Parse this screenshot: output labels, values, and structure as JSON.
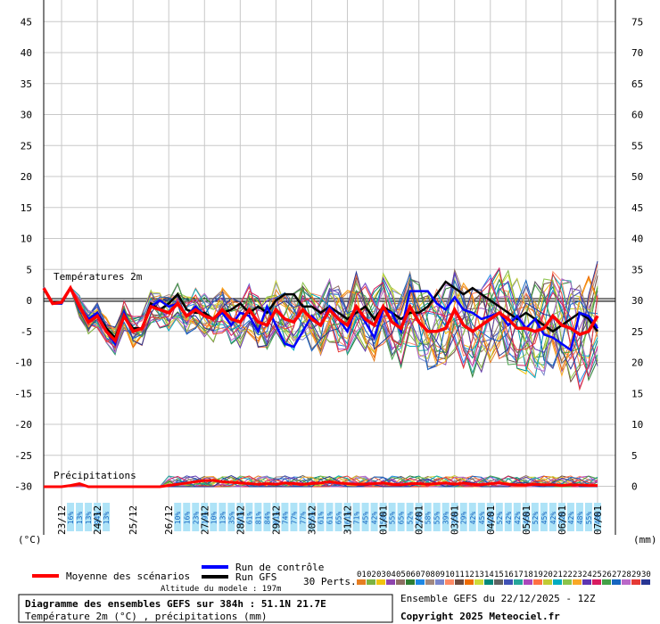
{
  "chart_data": {
    "type": "line",
    "title": "Diagramme des ensembles GEFS sur 384h : 51.1N 21.7E",
    "subtitle": "Température 2m (°C) , précipitations (mm)",
    "left_axis_unit": "(°C)",
    "right_axis_unit": "(mm)",
    "temp_ylim": [
      -30,
      45
    ],
    "temp_ticks": [
      45,
      40,
      35,
      30,
      25,
      20,
      15,
      10,
      5,
      0,
      -5,
      -10,
      -15,
      -20,
      -25,
      -30
    ],
    "right_ticks": [
      75,
      70,
      65,
      60,
      55,
      50,
      45,
      40,
      35,
      30,
      25,
      20,
      15,
      10,
      5,
      0
    ],
    "temp_section_label": "Températures 2m",
    "precip_section_label": "Précipitations",
    "date_labels": [
      "23/12",
      "24/12",
      "25/12",
      "26/12",
      "27/12",
      "28/12",
      "29/12",
      "30/12",
      "31/12",
      "01/01",
      "02/01",
      "03/01",
      "04/01",
      "05/01",
      "06/01",
      "07/01"
    ],
    "x_hours_max": 384,
    "x_step_hours": 6,
    "mean_temperature": [
      2,
      -0.5,
      -0.3,
      2,
      -1,
      -3.5,
      -2.5,
      -5,
      -6.5,
      -2.5,
      -5,
      -4.5,
      -1,
      -1.5,
      -2,
      -0.5,
      -2.5,
      -1.5,
      -2.5,
      -3,
      -1.5,
      -3,
      -3.5,
      -1.5,
      -3.5,
      -4,
      -1.5,
      -3,
      -3.5,
      -1.5,
      -3,
      -4,
      -1.5,
      -3,
      -4,
      -1,
      -3,
      -4,
      -1,
      -3.5,
      -4.5,
      -1,
      -3.5,
      -5,
      -5,
      -4.5,
      -1.5,
      -4,
      -5,
      -4,
      -3,
      -2,
      -3,
      -4.5,
      -4.5,
      -5,
      -4.5,
      -2.5,
      -4,
      -4.5,
      -5.5,
      -5,
      -2.5
    ],
    "control_temperature": [
      2,
      -0.5,
      -0.5,
      2,
      -1,
      -3,
      -2,
      -5,
      -7,
      -2,
      -5,
      -4.5,
      -1,
      0,
      -1,
      -0.5,
      -2.5,
      -1,
      -2.5,
      -3,
      -2,
      -4,
      -2,
      -2.5,
      -5,
      -1,
      -4,
      -7,
      -7.5,
      -5,
      -2.5,
      -4,
      -1,
      -3,
      -5,
      -1,
      -3.5,
      -6,
      -1.5,
      -2,
      -5,
      1.5,
      1.5,
      1.5,
      -0.5,
      -1.5,
      0.5,
      -1.5,
      -2,
      -3,
      -2.5,
      -2,
      -4,
      -2.5,
      -4.5,
      -3,
      -5.5,
      -6,
      -7,
      -8,
      -2,
      -2.5,
      -4.5
    ],
    "gfs_temperature": [
      2,
      -0.5,
      -0.5,
      2,
      -1,
      -3.5,
      -2,
      -4.5,
      -6,
      -2.5,
      -4.5,
      -4.5,
      -0.5,
      -1.5,
      -0.5,
      1,
      -1.5,
      -2,
      -2,
      -3,
      -2,
      -1.5,
      -0.5,
      -2,
      -1,
      -2,
      0,
      1,
      1,
      -1,
      -1,
      -2,
      -1,
      -2,
      -3,
      -2,
      -1,
      -3,
      -1,
      -2,
      -3,
      -2,
      -2,
      -1,
      1,
      3,
      2,
      1,
      2,
      1,
      0,
      -1,
      -2,
      -3,
      -2,
      -3,
      -4,
      -5,
      -4,
      -3,
      -2,
      -3,
      -5
    ],
    "ensemble_members": 30,
    "mean_precipitation": [
      0,
      0,
      0,
      0.2,
      0.5,
      0,
      0,
      0,
      0,
      0,
      0,
      0,
      0,
      0,
      0.2,
      0.4,
      0.6,
      0.8,
      1.0,
      1.0,
      0.8,
      0.7,
      0.6,
      0.5,
      0.4,
      0.5,
      0.4,
      0.6,
      0.5,
      0.4,
      0.5,
      0.6,
      0.8,
      0.6,
      0.5,
      0.4,
      0.4,
      0.5,
      0.6,
      0.4,
      0.3,
      0.5,
      0.5,
      0.4,
      0.5,
      0.6,
      0.4,
      0.6,
      0.4,
      0.3,
      0.5,
      0.6,
      0.4,
      0.3,
      0.3,
      0.4,
      0.3,
      0.3,
      0.2,
      0.3,
      0.3,
      0.2,
      0.2
    ],
    "precip_probabilities_1": [
      "16%",
      "13%",
      "13%",
      "94%",
      "13%"
    ],
    "precip_probabilities_2": [
      "10%",
      "16%",
      "23%",
      "19%",
      "10%",
      "13%",
      "35%",
      "61%",
      "61%",
      "81%",
      "84%",
      "81%",
      "74%",
      "77%",
      "77%",
      "55%",
      "61%",
      "61%",
      "65%",
      "61%",
      "71%",
      "45%",
      "42%",
      "58%",
      "55%",
      "65%",
      "52%",
      "58%",
      "58%",
      "55%",
      "39%",
      "35%",
      "29%",
      "42%",
      "45%",
      "42%",
      "52%",
      "42%",
      "42%",
      "45%",
      "52%",
      "45%",
      "42%",
      "32%",
      "42%",
      "48%",
      "55%",
      "48%"
    ]
  },
  "legend": {
    "mean_label": "Moyenne des scénarios",
    "mean_color": "#ff0000",
    "control_label": "Run de contrôle",
    "control_color": "#0000ff",
    "gfs_label": "Run GFS",
    "gfs_color": "#000000",
    "perts_label": "30 Perts.",
    "perts_numbers": [
      "01",
      "02",
      "03",
      "04",
      "05",
      "06",
      "07",
      "08",
      "09",
      "10",
      "11",
      "12",
      "13",
      "14",
      "15",
      "16",
      "17",
      "18",
      "19",
      "20",
      "21",
      "22",
      "23",
      "24",
      "25",
      "26",
      "27",
      "28",
      "29",
      "30"
    ],
    "perts_colors": [
      "#e67e22",
      "#7cb342",
      "#f1c40f",
      "#8e44ad",
      "#8d6e63",
      "#2e7d32",
      "#1e88e5",
      "#a1887f",
      "#7986cb",
      "#ff8a65",
      "#6d4c41",
      "#ef6c00",
      "#cddc39",
      "#00897b",
      "#616161",
      "#3f51b5",
      "#26a69a",
      "#ab47bc",
      "#ff7043",
      "#c0ca33",
      "#00acc1",
      "#8bc34a",
      "#f9a825",
      "#5e35b1",
      "#d81b60",
      "#43a047",
      "#1565c0",
      "#ba68c8",
      "#e53935",
      "#283593"
    ]
  },
  "footer": {
    "altitude": "Altitude du modele : 197m",
    "title_box_line1": "Diagramme des ensembles GEFS sur 384h : 51.1N 21.7E",
    "title_box_line2": "Température 2m (°C) , précipitations (mm)",
    "run_info": "Ensemble GEFS du 22/12/2025 - 12Z",
    "copyright": "Copyright 2025 Meteociel.fr"
  }
}
